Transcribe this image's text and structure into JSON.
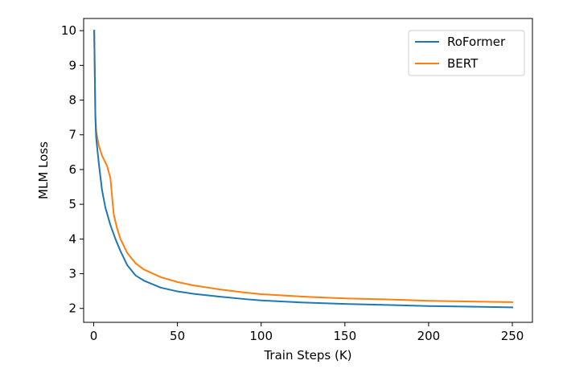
{
  "chart_data": {
    "type": "line",
    "title": "",
    "xlabel": "Train Steps (K)",
    "ylabel": "MLM Loss",
    "xlim": [
      -6,
      262
    ],
    "ylim": [
      1.6,
      10.35
    ],
    "xticks": [
      0,
      50,
      100,
      150,
      200,
      250
    ],
    "yticks": [
      2,
      3,
      4,
      5,
      6,
      7,
      8,
      9,
      10
    ],
    "grid": false,
    "legend": "top-right",
    "series": [
      {
        "name": "RoFormer",
        "color": "#1f77b4",
        "points": [
          [
            0.3,
            10.0
          ],
          [
            0.6,
            9.0
          ],
          [
            1.0,
            7.5
          ],
          [
            1.5,
            6.9
          ],
          [
            3,
            6.2
          ],
          [
            5,
            5.4
          ],
          [
            7,
            4.9
          ],
          [
            10,
            4.4
          ],
          [
            13,
            4.0
          ],
          [
            16,
            3.65
          ],
          [
            20,
            3.25
          ],
          [
            25,
            2.95
          ],
          [
            30,
            2.8
          ],
          [
            40,
            2.6
          ],
          [
            50,
            2.49
          ],
          [
            60,
            2.42
          ],
          [
            75,
            2.34
          ],
          [
            90,
            2.27
          ],
          [
            100,
            2.23
          ],
          [
            125,
            2.17
          ],
          [
            150,
            2.13
          ],
          [
            175,
            2.1
          ],
          [
            200,
            2.07
          ],
          [
            225,
            2.05
          ],
          [
            250,
            2.03
          ]
        ]
      },
      {
        "name": "BERT",
        "color": "#ff7f0e",
        "points": [
          [
            0.3,
            10.0
          ],
          [
            0.6,
            9.0
          ],
          [
            1.0,
            7.6
          ],
          [
            1.5,
            7.1
          ],
          [
            3,
            6.7
          ],
          [
            5,
            6.4
          ],
          [
            8,
            6.1
          ],
          [
            10,
            5.75
          ],
          [
            11,
            5.2
          ],
          [
            12,
            4.7
          ],
          [
            14,
            4.3
          ],
          [
            16,
            4.0
          ],
          [
            20,
            3.6
          ],
          [
            25,
            3.3
          ],
          [
            30,
            3.12
          ],
          [
            40,
            2.9
          ],
          [
            50,
            2.76
          ],
          [
            60,
            2.66
          ],
          [
            75,
            2.55
          ],
          [
            90,
            2.46
          ],
          [
            100,
            2.41
          ],
          [
            125,
            2.34
          ],
          [
            150,
            2.29
          ],
          [
            175,
            2.26
          ],
          [
            200,
            2.22
          ],
          [
            225,
            2.2
          ],
          [
            250,
            2.18
          ]
        ]
      }
    ]
  }
}
